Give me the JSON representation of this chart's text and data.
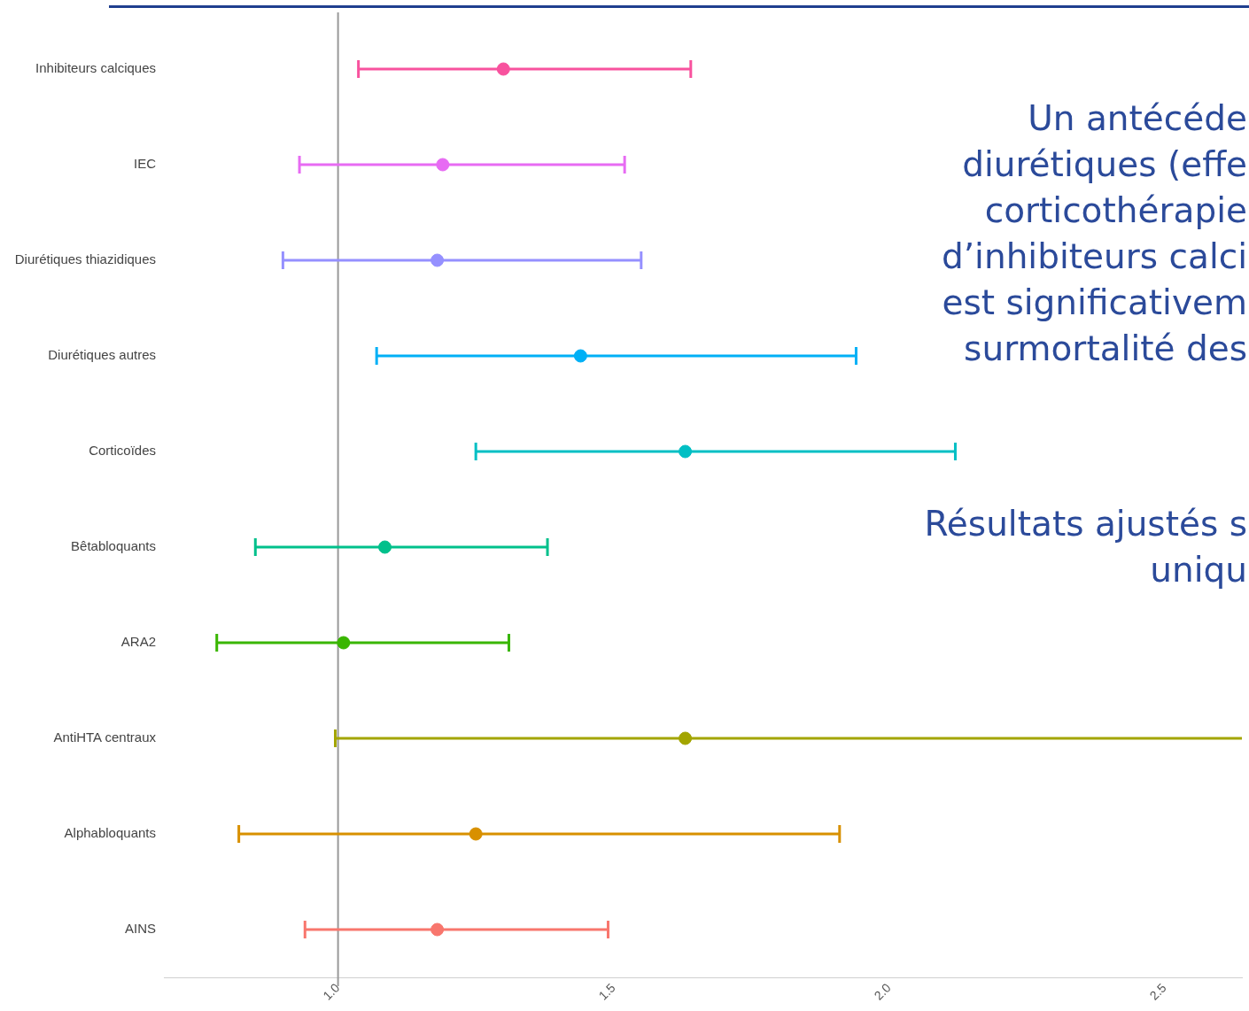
{
  "chart_data": {
    "type": "scatter",
    "categories": [
      "Inhibiteurs calciques",
      "IEC",
      "Diurétiques thiazidiques",
      "Diurétiques autres",
      "Corticoïdes",
      "Bêtabloquants",
      "ARA2",
      "AntiHTA centraux",
      "Alphabloquants",
      "AINS"
    ],
    "values": [
      1.3,
      1.19,
      1.18,
      1.44,
      1.63,
      1.085,
      1.01,
      1.63,
      1.25,
      1.18
    ],
    "errors": [
      [
        1.037,
        1.64
      ],
      [
        0.93,
        1.52
      ],
      [
        0.9,
        1.55
      ],
      [
        1.07,
        1.94
      ],
      [
        1.25,
        2.12
      ],
      [
        0.85,
        1.38
      ],
      [
        0.78,
        1.31
      ],
      [
        0.995,
        2.64
      ],
      [
        0.82,
        1.91
      ],
      [
        0.94,
        1.49
      ]
    ],
    "colors": [
      "#f8529e",
      "#e76bf3",
      "#9590ff",
      "#00b0f6",
      "#00bfc4",
      "#00c08b",
      "#39b600",
      "#a3a500",
      "#d89000",
      "#f8766d"
    ],
    "orientation": "horizontal",
    "xlim": [
      0.684,
      2.64
    ],
    "xticks": [
      {
        "value": 1,
        "label": "1.0"
      },
      {
        "value": 1.5,
        "label": "1.5"
      },
      {
        "value": 2,
        "label": "2.0"
      },
      {
        "value": 2.5,
        "label": "2.5"
      }
    ],
    "ref_lines": [
      {
        "axis": "x",
        "value": 1,
        "color": "#999999"
      }
    ],
    "annotations": [
      "Un antécéde\ndiurétiques (effe\ncorticothérapie\nd’inhibiteurs calci\nest significativem\nsurmortalité des",
      "Résultats ajustés s\nuniqu"
    ],
    "marker": "circle",
    "grid": false,
    "legend": false
  }
}
